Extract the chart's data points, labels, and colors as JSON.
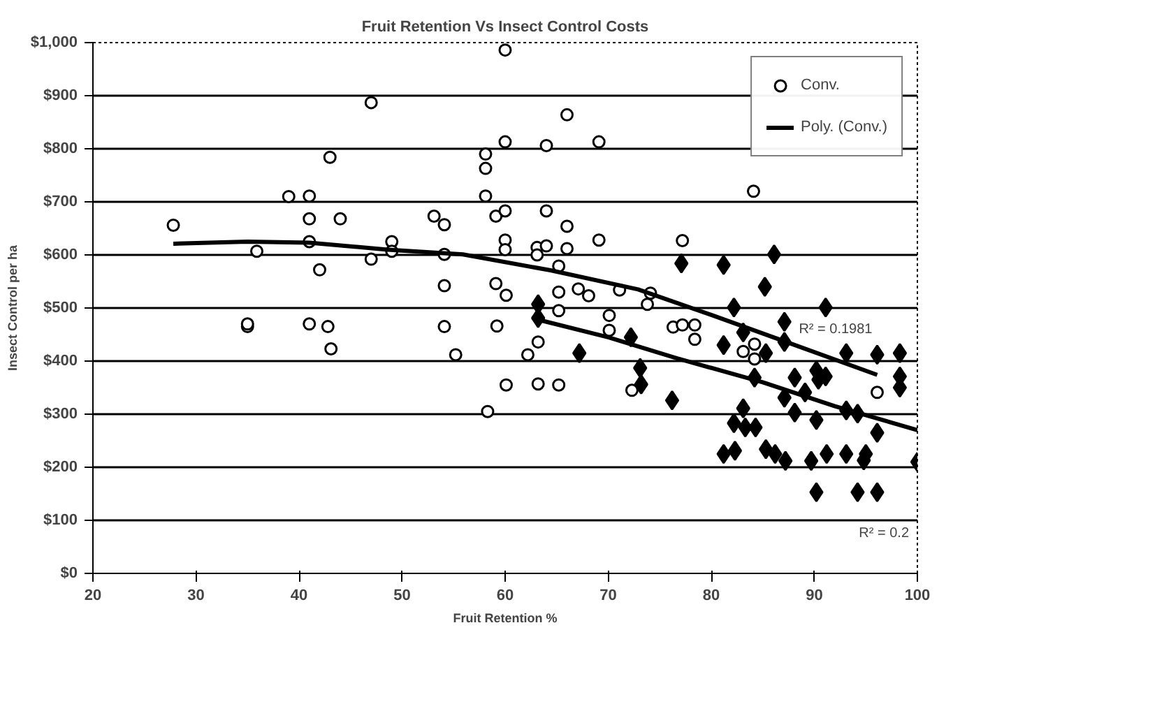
{
  "chart_data": {
    "type": "scatter",
    "title": "Fruit Retention Vs Insect Control Costs",
    "xlabel": "Fruit Retention %",
    "ylabel": "Insect Control per ha",
    "xlim": [
      20,
      100
    ],
    "xticks": [
      20,
      30,
      40,
      50,
      60,
      70,
      80,
      90,
      100
    ],
    "ylim": [
      0,
      1000
    ],
    "yticks": [
      {
        "value": 0,
        "label": "$0"
      },
      {
        "value": 100,
        "label": "$100"
      },
      {
        "value": 200,
        "label": "$200"
      },
      {
        "value": 300,
        "label": "$300"
      },
      {
        "value": 400,
        "label": "$400"
      },
      {
        "value": 500,
        "label": "$500"
      },
      {
        "value": 600,
        "label": "$600"
      },
      {
        "value": 700,
        "label": "$700"
      },
      {
        "value": 800,
        "label": "$800"
      },
      {
        "value": 900,
        "label": "$900"
      },
      {
        "value": 1000,
        "label": "$1,000"
      }
    ],
    "grid": "y",
    "legend": "top right",
    "series": [
      {
        "marker": "diamond",
        "color": "#000000",
        "x": [
          63.2,
          63.2,
          67.2,
          72.2,
          73.1,
          73.2,
          76.2,
          86.1,
          77.1,
          81.2,
          85.2,
          82.2,
          91.1,
          87.1,
          83.1,
          81.2,
          87.1,
          85.3,
          93.1,
          96.1,
          98.3,
          84.2,
          88.1,
          90.2,
          90.4,
          91.1,
          98.3,
          98.3,
          87.1,
          88.1,
          89.1,
          90.2,
          83.1,
          82.2,
          83.3,
          84.3,
          93.1,
          94.2,
          96.1,
          81.2,
          82.3,
          85.3,
          86.2,
          87.2,
          89.7,
          91.2,
          93.1,
          94.8,
          95.0,
          90.2,
          94.2,
          96.1,
          100
        ],
        "values": [
          507,
          481,
          415,
          445,
          387,
          356,
          326,
          601,
          584,
          581,
          540,
          501,
          501,
          474,
          454,
          430,
          436,
          415,
          415,
          412,
          415,
          369,
          369,
          382,
          365,
          371,
          371,
          350,
          331,
          303,
          341,
          289,
          311,
          283,
          275,
          275,
          307,
          301,
          265,
          225,
          231,
          234,
          225,
          212,
          212,
          225,
          225,
          213,
          225,
          153,
          153,
          153,
          210
        ]
      },
      {
        "name": "Conv.",
        "marker": "circle",
        "color": "#000000",
        "x": [
          27.8,
          47.0,
          43.0,
          39.0,
          41.0,
          41.0,
          44.0,
          41.0,
          35.9,
          47.0,
          42.0,
          35.0,
          35.0,
          41.0,
          42.8,
          43.1,
          60.0,
          66.0,
          60.0,
          64.0,
          69.1,
          58.1,
          58.1,
          58.1,
          53.1,
          54.1,
          59.1,
          60.0,
          64.0,
          66.0,
          49.0,
          49.0,
          54.1,
          60.0,
          60.0,
          63.1,
          63.1,
          64.0,
          66.0,
          69.1,
          65.2,
          54.1,
          59.1,
          60.1,
          65.2,
          67.1,
          68.1,
          71.1,
          74.1,
          73.8,
          65.2,
          70.1,
          70.1,
          54.1,
          59.2,
          63.2,
          55.2,
          62.2,
          60.1,
          63.2,
          65.2,
          72.3,
          58.3,
          84.1,
          77.2,
          76.3,
          77.2,
          78.4,
          78.4,
          83.1,
          84.2,
          84.2,
          96.1
        ],
        "values": [
          656,
          887,
          784,
          710,
          711,
          668,
          668,
          625,
          607,
          592,
          572,
          465,
          470,
          470,
          465,
          423,
          986,
          864,
          813,
          806,
          813,
          790,
          763,
          711,
          673,
          657,
          673,
          683,
          683,
          654,
          625,
          607,
          601,
          628,
          610,
          614,
          600,
          617,
          612,
          628,
          579,
          542,
          546,
          524,
          530,
          536,
          523,
          534,
          528,
          507,
          495,
          486,
          458,
          465,
          466,
          436,
          412,
          412,
          355,
          357,
          355,
          345,
          305,
          720,
          627,
          464,
          468,
          468,
          441,
          418,
          432,
          404,
          341
        ]
      },
      {
        "type": "line",
        "color": "#000000",
        "line_style": "solid",
        "x": [
          63.2,
          70,
          76.7,
          85,
          92,
          100
        ],
        "values": [
          478,
          445,
          405,
          360,
          315,
          270
        ]
      },
      {
        "type": "line",
        "name": "Poly. (Conv.)",
        "color": "#000000",
        "line_style": "solid",
        "x": [
          27.8,
          35,
          41,
          48.6,
          55.9,
          64.4,
          72.9,
          80,
          87,
          96.1
        ],
        "values": [
          621,
          625,
          623,
          610,
          601,
          571,
          535,
          487,
          438,
          374
        ]
      }
    ],
    "annotations": [
      {
        "text": "R² = 0.1981",
        "x": 88.5,
        "y": 445
      },
      "R² = 0.2"
    ]
  }
}
